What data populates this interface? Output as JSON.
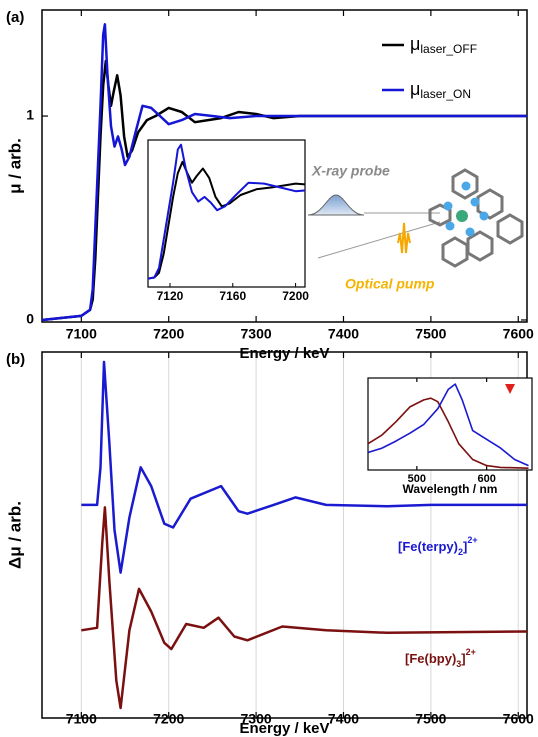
{
  "chart_data": [
    {
      "type": "line",
      "label": "(a)",
      "ylabel": "μ / arb.",
      "xlabel": "Energy / keV",
      "xlim": [
        7055,
        7610
      ],
      "ylim": [
        -0.01,
        1.52
      ],
      "xticks": [
        7100,
        7200,
        7300,
        7400,
        7500,
        7600
      ],
      "yticks": [
        0,
        1
      ],
      "series": [
        {
          "name_parts": [
            "μ",
            "laser_OFF"
          ],
          "color": "#000000",
          "x": [
            7055,
            7100,
            7110,
            7113,
            7116,
            7119,
            7122,
            7125,
            7128,
            7131,
            7134,
            7137,
            7141,
            7145,
            7149,
            7153,
            7158,
            7165,
            7175,
            7185,
            7200,
            7215,
            7230,
            7245,
            7260,
            7280,
            7300,
            7320,
            7350,
            7400,
            7610
          ],
          "values": [
            0,
            0.02,
            0.05,
            0.1,
            0.3,
            0.6,
            0.9,
            1.15,
            1.27,
            1.15,
            1.05,
            1.12,
            1.2,
            1.1,
            0.9,
            0.8,
            0.83,
            0.92,
            0.98,
            1.0,
            1.04,
            1.02,
            0.97,
            0.98,
            0.99,
            1.02,
            1.01,
            0.99,
            1.0,
            1.0,
            1.0
          ]
        },
        {
          "name_parts": [
            "μ",
            "laser_ON"
          ],
          "color": "#1515d6",
          "x": [
            7055,
            7100,
            7110,
            7113,
            7116,
            7119,
            7122,
            7125,
            7127,
            7130,
            7134,
            7138,
            7142,
            7146,
            7150,
            7155,
            7162,
            7170,
            7180,
            7190,
            7200,
            7215,
            7230,
            7250,
            7270,
            7300,
            7610
          ],
          "values": [
            0,
            0.02,
            0.05,
            0.15,
            0.45,
            0.75,
            1.05,
            1.4,
            1.45,
            1.2,
            0.95,
            0.85,
            0.9,
            0.84,
            0.76,
            0.8,
            0.92,
            1.05,
            1.04,
            1.0,
            0.96,
            0.98,
            1.01,
            1.0,
            0.99,
            1.0,
            1.0
          ]
        }
      ],
      "inset": {
        "xlim": [
          7106,
          7206
        ],
        "ylim": [
          -0.05,
          1.5
        ],
        "xticks": [
          7120,
          7160,
          7200
        ]
      },
      "annotations": [
        "X-ray probe",
        "Optical pump"
      ]
    },
    {
      "type": "line",
      "label": "(b)",
      "ylabel": "Δμ / arb.",
      "xlabel": "Energy / keV",
      "xlim": [
        7055,
        7610
      ],
      "ylim": [
        -0.7,
        2.22
      ],
      "xticks": [
        7100,
        7200,
        7300,
        7400,
        7500,
        7600
      ],
      "grid": true,
      "series": [
        {
          "name_parts": [
            "[Fe(terpy)",
            "2",
            "]",
            "2+"
          ],
          "color": "#1a1ad0",
          "x": [
            7100,
            7118,
            7122,
            7126,
            7132,
            7138,
            7145,
            7155,
            7168,
            7180,
            7195,
            7205,
            7225,
            7260,
            7280,
            7290,
            7320,
            7345,
            7380,
            7450,
            7500,
            7610
          ],
          "values": [
            1.0,
            1.0,
            1.3,
            2.14,
            1.5,
            0.8,
            0.46,
            0.9,
            1.3,
            1.15,
            0.85,
            0.82,
            1.05,
            1.15,
            0.95,
            0.93,
            1.0,
            1.06,
            1.0,
            0.99,
            1.0,
            1.0
          ]
        },
        {
          "name_parts": [
            "[Fe(bpy)",
            "3",
            "]",
            "2+"
          ],
          "color": "#7a1010",
          "x": [
            7100,
            7118,
            7124,
            7127,
            7132,
            7140,
            7145,
            7155,
            7166,
            7180,
            7195,
            7203,
            7220,
            7240,
            7257,
            7275,
            7290,
            7330,
            7380,
            7450,
            7610
          ],
          "values": [
            0,
            0.02,
            0.7,
            0.98,
            0.4,
            -0.4,
            -0.62,
            0,
            0.33,
            0.15,
            -0.1,
            -0.15,
            0.05,
            0.02,
            0.1,
            -0.05,
            -0.08,
            0.03,
            0,
            -0.02,
            -0.01
          ]
        }
      ]
    },
    {
      "type": "line",
      "xlabel": "Wavelength / nm",
      "xlim": [
        430,
        665
      ],
      "ylim": [
        0,
        1.05
      ],
      "xticks": [
        500,
        600
      ],
      "series": [
        {
          "color": "#7a1010",
          "x": [
            430,
            450,
            470,
            490,
            510,
            520,
            530,
            545,
            560,
            580,
            600,
            620,
            660
          ],
          "values": [
            0.3,
            0.4,
            0.55,
            0.72,
            0.8,
            0.82,
            0.78,
            0.55,
            0.3,
            0.12,
            0.05,
            0.03,
            0.02
          ]
        },
        {
          "color": "#1a1ad0",
          "x": [
            430,
            450,
            470,
            490,
            510,
            530,
            545,
            555,
            565,
            580,
            600,
            620,
            640,
            660
          ],
          "values": [
            0.2,
            0.25,
            0.33,
            0.42,
            0.52,
            0.7,
            0.92,
            0.98,
            0.8,
            0.45,
            0.35,
            0.25,
            0.12,
            0.05
          ]
        }
      ]
    }
  ]
}
